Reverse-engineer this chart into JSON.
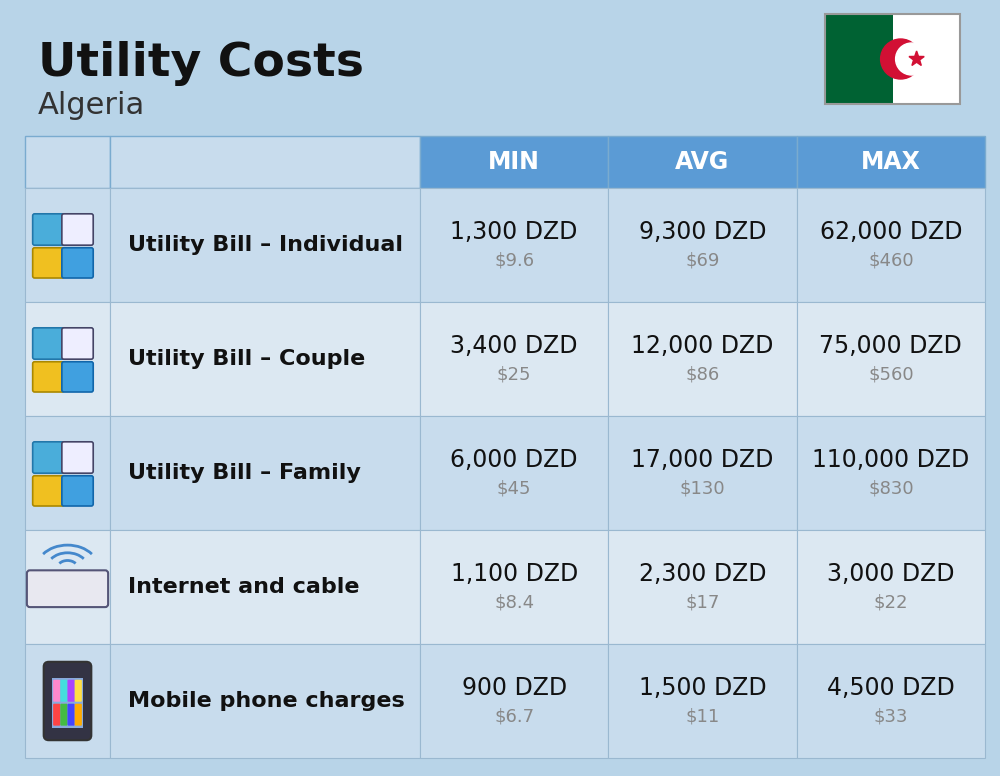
{
  "title": "Utility Costs",
  "subtitle": "Algeria",
  "background_color": "#b8d4e8",
  "header_bg_color": "#5b9bd5",
  "header_text_color": "#ffffff",
  "row_bg_color_1": "#c8dced",
  "row_bg_color_2": "#dce8f2",
  "border_color": "#9ab8d0",
  "col_headers": [
    "MIN",
    "AVG",
    "MAX"
  ],
  "rows": [
    {
      "label": "Utility Bill – Individual",
      "min_dzd": "1,300 DZD",
      "min_usd": "$9.6",
      "avg_dzd": "9,300 DZD",
      "avg_usd": "$69",
      "max_dzd": "62,000 DZD",
      "max_usd": "$460"
    },
    {
      "label": "Utility Bill – Couple",
      "min_dzd": "3,400 DZD",
      "min_usd": "$25",
      "avg_dzd": "12,000 DZD",
      "avg_usd": "$86",
      "max_dzd": "75,000 DZD",
      "max_usd": "$560"
    },
    {
      "label": "Utility Bill – Family",
      "min_dzd": "6,000 DZD",
      "min_usd": "$45",
      "avg_dzd": "17,000 DZD",
      "avg_usd": "$130",
      "max_dzd": "110,000 DZD",
      "max_usd": "$830"
    },
    {
      "label": "Internet and cable",
      "min_dzd": "1,100 DZD",
      "min_usd": "$8.4",
      "avg_dzd": "2,300 DZD",
      "avg_usd": "$17",
      "max_dzd": "3,000 DZD",
      "max_usd": "$22"
    },
    {
      "label": "Mobile phone charges",
      "min_dzd": "900 DZD",
      "min_usd": "$6.7",
      "avg_dzd": "1,500 DZD",
      "avg_usd": "$11",
      "max_dzd": "4,500 DZD",
      "max_usd": "$33"
    }
  ],
  "title_fontsize": 34,
  "subtitle_fontsize": 22,
  "header_fontsize": 17,
  "label_fontsize": 16,
  "value_fontsize": 17,
  "usd_fontsize": 13,
  "usd_color": "#888888",
  "value_color": "#111111",
  "label_color": "#111111"
}
